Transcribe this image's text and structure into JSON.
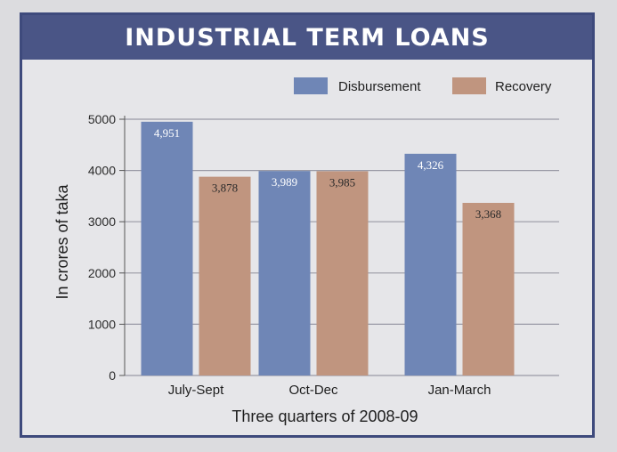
{
  "chart_data": {
    "type": "bar",
    "title": "INDUSTRIAL TERM LOANS",
    "categories": [
      "July-Sept",
      "Oct-Dec",
      "Jan-March"
    ],
    "series": [
      {
        "name": "Disbursement",
        "values": [
          4951,
          3989,
          4326
        ],
        "labels": [
          "4,951",
          "3,989",
          "4,326"
        ],
        "color": "#6f86b6",
        "label_color": "#ffffff"
      },
      {
        "name": "Recovery",
        "values": [
          3878,
          3985,
          3368
        ],
        "labels": [
          "3,878",
          "3,985",
          "3,368"
        ],
        "color": "#c0957f",
        "label_color": "#2a2a2a"
      }
    ],
    "xlabel": "Three quarters of 2008-09",
    "ylabel": "In crores of taka",
    "ylim": [
      0,
      5000
    ],
    "yticks": [
      "0",
      "1000",
      "2000",
      "3000",
      "4000",
      "5000"
    ],
    "grid": true,
    "legend": "top-right"
  }
}
